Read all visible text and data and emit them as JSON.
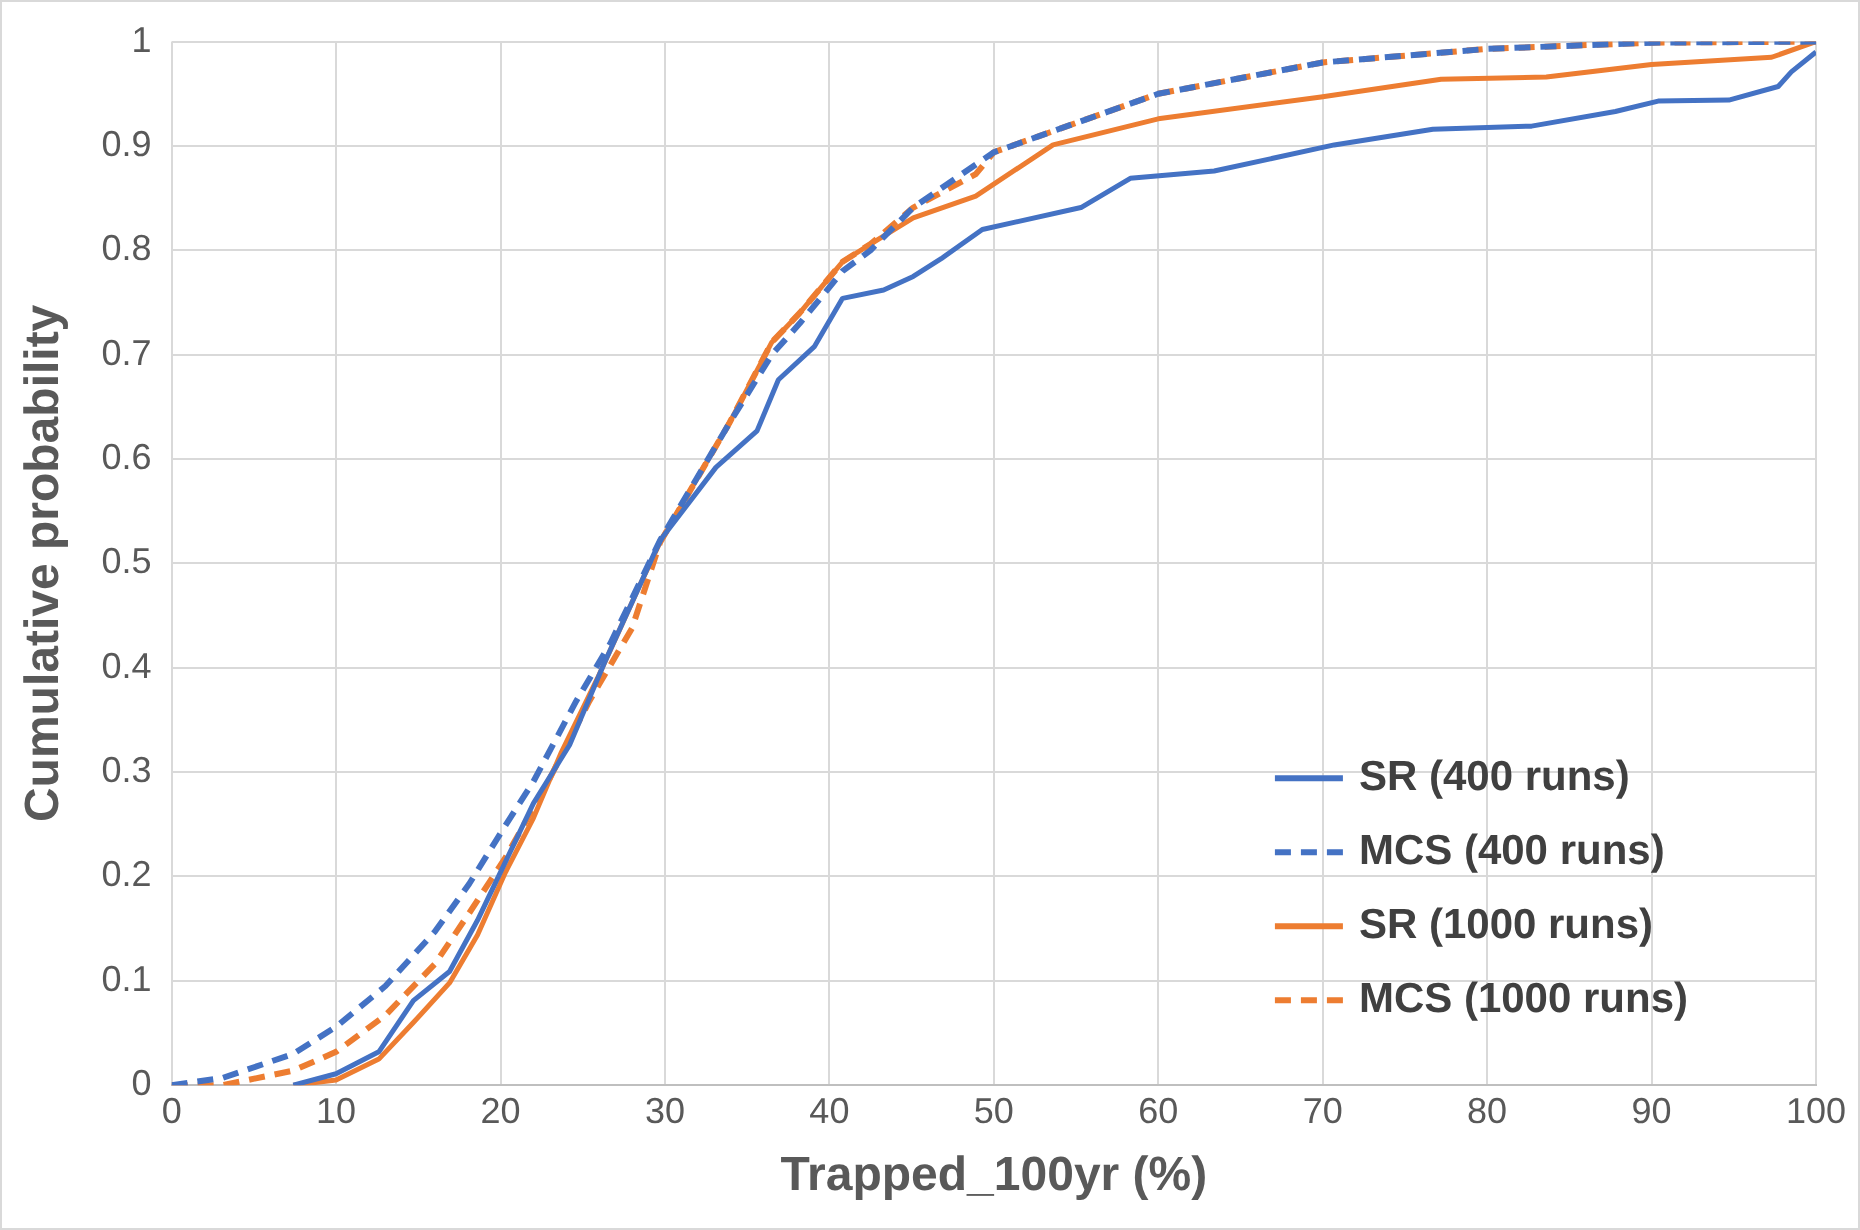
{
  "chart_data": {
    "type": "line",
    "xlabel": "Trapped_100yr (%)",
    "ylabel": "Cumulative probability",
    "xlim": [
      0,
      100
    ],
    "xticks": [
      0,
      10,
      20,
      30,
      40,
      50,
      60,
      70,
      80,
      90,
      100
    ],
    "ylim": [
      0,
      1
    ],
    "yticks": [
      0,
      0.1,
      0.2,
      0.3,
      0.4,
      0.5,
      0.6,
      0.7,
      0.8,
      0.9,
      1
    ],
    "grid": true,
    "legend": "bottom right",
    "marker": "none",
    "series": [
      {
        "name": "SR (400 runs)",
        "color": "#4472c4",
        "line_style": "solid",
        "x": [
          7.4,
          10,
          12.6,
          14.7,
          16.9,
          18.6,
          20.3,
          22,
          24.2,
          26.3,
          28.5,
          29.7,
          33.1,
          35.6,
          36.9,
          39.1,
          40.8,
          43.3,
          45.1,
          46.8,
          49.3,
          55.3,
          58.3,
          63.4,
          70.7,
          76.7,
          82.7,
          87.8,
          90.4,
          94.7,
          97.7,
          98.5,
          100
        ],
        "values": [
          0,
          0.011,
          0.032,
          0.081,
          0.109,
          0.158,
          0.214,
          0.27,
          0.326,
          0.404,
          0.48,
          0.522,
          0.592,
          0.627,
          0.676,
          0.708,
          0.754,
          0.762,
          0.775,
          0.792,
          0.82,
          0.841,
          0.869,
          0.876,
          0.901,
          0.916,
          0.919,
          0.933,
          0.943,
          0.944,
          0.957,
          0.971,
          0.99
        ]
      },
      {
        "name": "MCS (400 runs)",
        "color": "#4472c4",
        "line_style": "dashed",
        "x": [
          0,
          3.1,
          7.4,
          10,
          13,
          16,
          18.1,
          20.3,
          22,
          24.6,
          26.7,
          29.7,
          33.9,
          36.5,
          38.2,
          40.8,
          42.5,
          45.1,
          50,
          60,
          70,
          80,
          90,
          100
        ],
        "values": [
          0,
          0.007,
          0.03,
          0.056,
          0.095,
          0.147,
          0.193,
          0.249,
          0.291,
          0.368,
          0.424,
          0.522,
          0.634,
          0.7,
          0.73,
          0.78,
          0.8,
          0.841,
          0.894,
          0.95,
          0.98,
          0.993,
          0.999,
          1
        ]
      },
      {
        "name": "SR (1000 runs)",
        "color": "#ed7d31",
        "line_style": "solid",
        "x": [
          7.4,
          10,
          12.6,
          14.7,
          16.9,
          18.6,
          20.3,
          22,
          23.7,
          25.9,
          28.5,
          29.7,
          33.9,
          36.5,
          38.2,
          40.8,
          42.5,
          45.1,
          48.9,
          53.6,
          60,
          69.9,
          77.2,
          83.6,
          90,
          97.3,
          100
        ],
        "values": [
          0,
          0.005,
          0.025,
          0.06,
          0.098,
          0.144,
          0.204,
          0.256,
          0.319,
          0.39,
          0.48,
          0.52,
          0.634,
          0.712,
          0.74,
          0.789,
          0.806,
          0.831,
          0.852,
          0.901,
          0.926,
          0.947,
          0.964,
          0.966,
          0.978,
          0.985,
          1
        ]
      },
      {
        "name": "MCS (1000 runs)",
        "color": "#ed7d31",
        "line_style": "dashed",
        "x": [
          0,
          3.1,
          7.4,
          10,
          13,
          16,
          18.1,
          20.3,
          22.9,
          25.4,
          28,
          29.7,
          33.9,
          36.5,
          38.2,
          40.8,
          42.5,
          45.1,
          48.9,
          50,
          60,
          70,
          80,
          90,
          100
        ],
        "values": [
          0,
          0,
          0.014,
          0.032,
          0.067,
          0.116,
          0.165,
          0.218,
          0.291,
          0.368,
          0.438,
          0.52,
          0.634,
          0.712,
          0.74,
          0.789,
          0.806,
          0.841,
          0.873,
          0.894,
          0.95,
          0.98,
          0.993,
          0.999,
          1
        ]
      }
    ]
  }
}
